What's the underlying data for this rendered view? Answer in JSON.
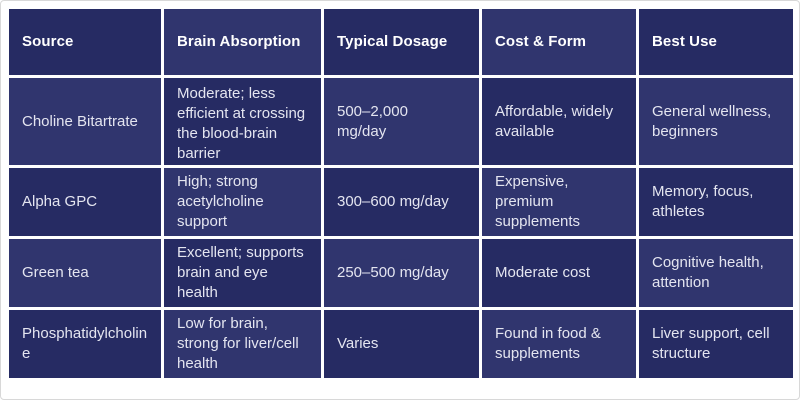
{
  "colors": {
    "page_bg": "#ffffff",
    "grid": "#ffffff",
    "cell_dark": "#262b63",
    "cell_light": "#30356e",
    "header_text": "#ffffff",
    "body_text": "#e4e5f0"
  },
  "table": {
    "columns": [
      "Source",
      "Brain Absorption",
      "Typical Dosage",
      "Cost & Form",
      "Best Use"
    ],
    "rows": [
      [
        "Choline Bitartrate",
        "Moderate; less efficient at crossing the blood-brain barrier",
        "500–2,000 mg/day",
        "Affordable, widely available",
        "General wellness, beginners"
      ],
      [
        "Alpha GPC",
        "High; strong acetylcholine support",
        "300–600 mg/day",
        "Expensive, premium supplements",
        "Memory, focus, athletes"
      ],
      [
        "Green tea",
        "Excellent; supports brain and eye health",
        "250–500 mg/day",
        "Moderate cost",
        "Cognitive health, attention"
      ],
      [
        "Phosphatidylcholine",
        "Low for brain, strong for liver/cell health",
        "Varies",
        "Found in food & supplements",
        "Liver support, cell structure"
      ]
    ]
  }
}
